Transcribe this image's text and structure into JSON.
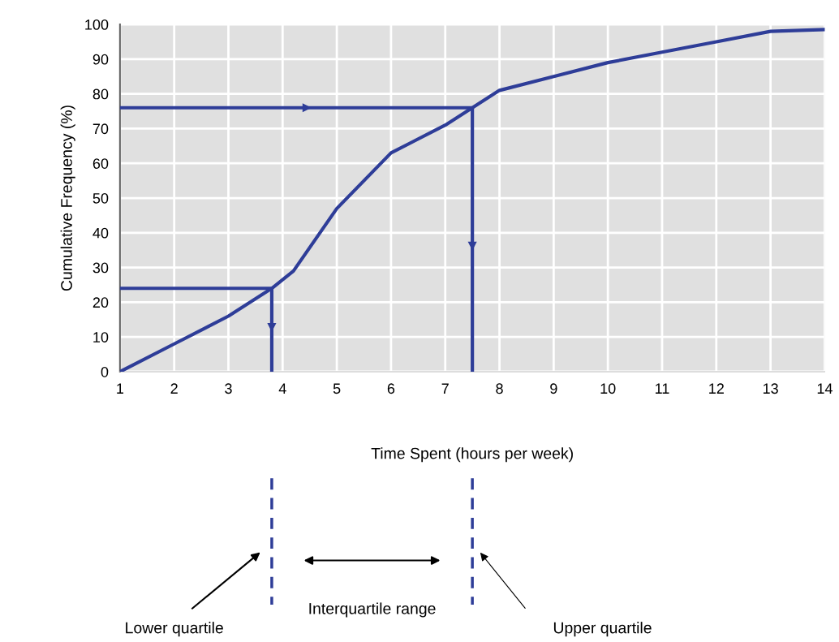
{
  "chart_data": {
    "type": "line",
    "xlabel": "Time Spent (hours per week)",
    "ylabel": "Cumulative Frequency (%)",
    "xlim": [
      1,
      14
    ],
    "xticks": [
      1,
      2,
      3,
      4,
      5,
      6,
      7,
      8,
      9,
      10,
      11,
      12,
      13,
      14
    ],
    "ylim": [
      0,
      100
    ],
    "yticks": [
      0,
      10,
      20,
      30,
      40,
      50,
      60,
      70,
      80,
      90,
      100
    ],
    "grid": true,
    "series": [
      {
        "color": "#2e3d98",
        "x": [
          1,
          2,
          3,
          3.8,
          4.2,
          5,
          6,
          7,
          7.5,
          8,
          9,
          10,
          11,
          12,
          13,
          14
        ],
        "values": [
          0,
          8,
          16,
          24,
          29,
          47,
          63,
          71,
          76,
          81,
          85,
          89,
          92,
          95,
          98,
          98.5
        ]
      },
      {
        "color": "#2e3d98",
        "x": [
          1,
          3.8,
          3.8
        ],
        "values": [
          24,
          24,
          0
        ]
      },
      {
        "color": "#2e3d98",
        "x": [
          1,
          7.5,
          7.5
        ],
        "values": [
          76,
          76,
          0
        ]
      }
    ],
    "annotations": [
      "Lower quartile",
      "Interquartile range",
      "Upper quartile"
    ]
  }
}
